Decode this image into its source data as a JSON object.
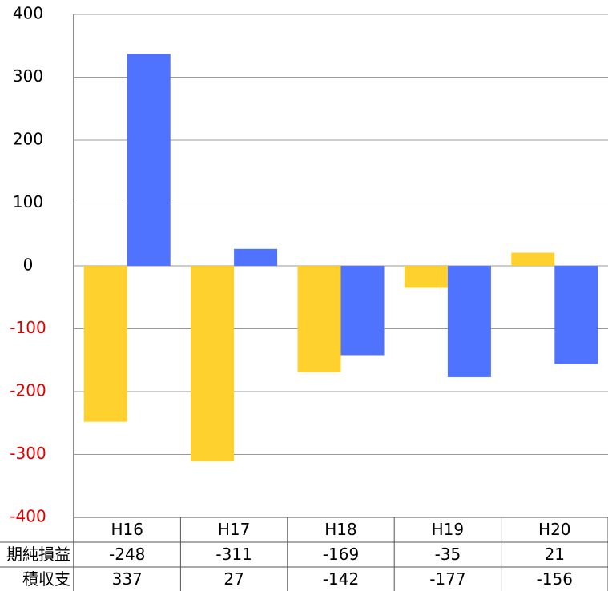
{
  "chart_data": {
    "type": "bar",
    "categories": [
      "H16",
      "H17",
      "H18",
      "H19",
      "H20"
    ],
    "series": [
      {
        "name": "期純損益",
        "color": "#ffd12e",
        "values": [
          -248,
          -311,
          -169,
          -35,
          21
        ]
      },
      {
        "name": "積収支",
        "color": "#4f72ff",
        "values": [
          337,
          27,
          -142,
          -177,
          -156
        ]
      }
    ],
    "ylim": [
      -400,
      400
    ],
    "yticks": [
      -400,
      -300,
      -200,
      -100,
      0,
      100,
      200,
      300,
      400
    ],
    "grid": true,
    "negative_tick_color": "#e00000"
  }
}
